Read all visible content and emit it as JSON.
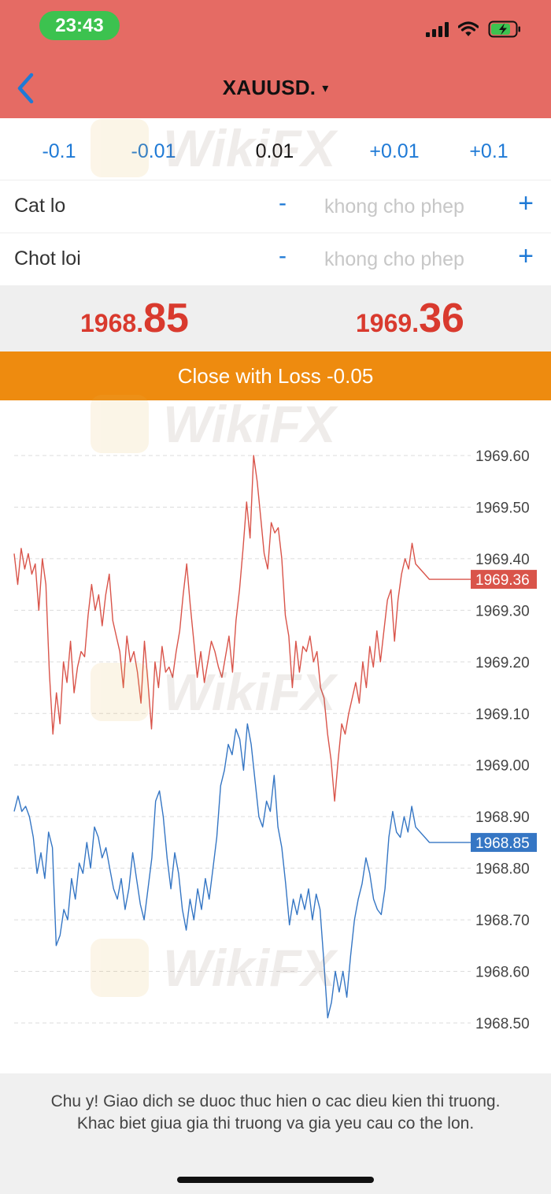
{
  "status_bar": {
    "time": "23:43"
  },
  "header": {
    "title": "XAUUSD.",
    "caret": "▾"
  },
  "volume": {
    "steps": [
      "-0.1",
      "-0.01",
      "0.01",
      "+0.01",
      "+0.1"
    ]
  },
  "stop_loss": {
    "label": "Cat lo",
    "value": "khong cho phep",
    "minus": "-",
    "plus": "+"
  },
  "take_profit": {
    "label": "Chot loi",
    "value": "khong cho phep",
    "minus": "-",
    "plus": "+"
  },
  "prices": {
    "bid": {
      "small": "1968.",
      "big": "85"
    },
    "ask": {
      "small": "1969.",
      "big": "36"
    }
  },
  "close_button": {
    "label": "Close with Loss -0.05"
  },
  "chart_data": {
    "type": "line",
    "y_tick_labels": [
      "1969.60",
      "1969.50",
      "1969.40",
      "1969.30",
      "1969.20",
      "1969.10",
      "1969.00",
      "1968.90",
      "1968.80",
      "1968.70",
      "1968.60",
      "1968.50"
    ],
    "ylim": [
      1968.5,
      1969.6
    ],
    "grid": true,
    "series": [
      {
        "role": "ask",
        "color": "#d9544a",
        "last_label": "1969.36",
        "values": [
          1969.41,
          1969.35,
          1969.42,
          1969.38,
          1969.41,
          1969.37,
          1969.39,
          1969.3,
          1969.4,
          1969.35,
          1969.18,
          1969.06,
          1969.14,
          1969.08,
          1969.2,
          1969.16,
          1969.24,
          1969.14,
          1969.19,
          1969.22,
          1969.21,
          1969.29,
          1969.35,
          1969.3,
          1969.33,
          1969.27,
          1969.33,
          1969.37,
          1969.28,
          1969.25,
          1969.22,
          1969.15,
          1969.25,
          1969.2,
          1969.22,
          1969.18,
          1969.12,
          1969.24,
          1969.16,
          1969.07,
          1969.2,
          1969.15,
          1969.23,
          1969.18,
          1969.19,
          1969.17,
          1969.22,
          1969.26,
          1969.33,
          1969.39,
          1969.31,
          1969.24,
          1969.17,
          1969.22,
          1969.16,
          1969.2,
          1969.24,
          1969.22,
          1969.19,
          1969.17,
          1969.21,
          1969.25,
          1969.18,
          1969.28,
          1969.34,
          1969.42,
          1969.51,
          1969.44,
          1969.6,
          1969.55,
          1969.48,
          1969.41,
          1969.38,
          1969.47,
          1969.45,
          1969.46,
          1969.4,
          1969.29,
          1969.25,
          1969.15,
          1969.24,
          1969.18,
          1969.23,
          1969.22,
          1969.25,
          1969.2,
          1969.22,
          1969.15,
          1969.13,
          1969.06,
          1969.01,
          1968.93,
          1969.01,
          1969.08,
          1969.06,
          1969.1,
          1969.13,
          1969.16,
          1969.12,
          1969.2,
          1969.15,
          1969.23,
          1969.19,
          1969.26,
          1969.2,
          1969.26,
          1969.32,
          1969.34,
          1969.24,
          1969.32,
          1969.37,
          1969.4,
          1969.38,
          1969.43,
          1969.39,
          1969.36,
          1969.36,
          1969.36,
          1969.36
        ]
      },
      {
        "role": "bid",
        "color": "#3576c4",
        "last_label": "1968.85",
        "values": [
          1968.91,
          1968.94,
          1968.91,
          1968.92,
          1968.9,
          1968.86,
          1968.79,
          1968.83,
          1968.78,
          1968.87,
          1968.84,
          1968.65,
          1968.67,
          1968.72,
          1968.7,
          1968.78,
          1968.74,
          1968.81,
          1968.79,
          1968.85,
          1968.8,
          1968.88,
          1968.86,
          1968.82,
          1968.84,
          1968.8,
          1968.76,
          1968.74,
          1968.78,
          1968.72,
          1968.76,
          1968.83,
          1968.78,
          1968.73,
          1968.7,
          1968.76,
          1968.82,
          1968.93,
          1968.95,
          1968.9,
          1968.82,
          1968.76,
          1968.83,
          1968.79,
          1968.72,
          1968.68,
          1968.74,
          1968.7,
          1968.76,
          1968.72,
          1968.78,
          1968.74,
          1968.8,
          1968.86,
          1968.96,
          1968.99,
          1969.04,
          1969.02,
          1969.07,
          1969.05,
          1968.99,
          1969.08,
          1969.04,
          1968.97,
          1968.9,
          1968.88,
          1968.93,
          1968.91,
          1968.98,
          1968.88,
          1968.84,
          1968.77,
          1968.69,
          1968.74,
          1968.71,
          1968.75,
          1968.72,
          1968.76,
          1968.7,
          1968.75,
          1968.72,
          1968.62,
          1968.51,
          1968.54,
          1968.6,
          1968.56,
          1968.6,
          1968.55,
          1968.63,
          1968.7,
          1968.74,
          1968.77,
          1968.82,
          1968.79,
          1968.74,
          1968.72,
          1968.71,
          1968.76,
          1968.86,
          1968.91,
          1968.87,
          1968.86,
          1968.9,
          1968.87,
          1968.92,
          1968.88,
          1968.85,
          1968.85,
          1968.85,
          1968.85
        ]
      }
    ]
  },
  "footer": {
    "notice_line1": "Chu y! Giao dich se duoc thuc hien o cac dieu kien thi truong.",
    "notice_line2": "Khac biet giua gia thi truong va gia yeu cau co the lon."
  },
  "watermark": {
    "text": "WikiFX"
  }
}
